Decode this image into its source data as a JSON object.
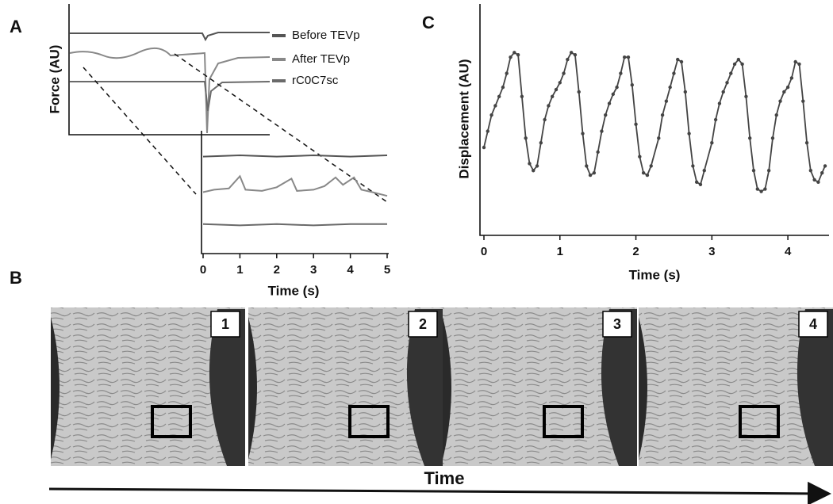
{
  "panel_labels": [
    "A",
    "B",
    "C"
  ],
  "chart_data": [
    {
      "type": "line",
      "ylabel": "Force (AU)",
      "xlabel": "Time (s)",
      "xlim": [
        0,
        5
      ],
      "xticks": [
        0,
        1,
        2,
        3,
        4,
        5
      ],
      "ylim": [
        0,
        100
      ],
      "series": [
        {
          "name": "Before TEVp",
          "color": "#555555",
          "x": [
            0,
            1,
            2,
            3,
            4,
            5
          ],
          "values": [
            79,
            80,
            79,
            80,
            79,
            80
          ]
        },
        {
          "name": "After TEVp",
          "color": "#888888",
          "x": [
            0,
            0.3,
            0.7,
            1.0,
            1.15,
            1.6,
            2.0,
            2.4,
            2.55,
            3.0,
            3.3,
            3.6,
            3.8,
            4.1,
            4.3,
            4.6,
            5
          ],
          "values": [
            50,
            52,
            53,
            63,
            52,
            51,
            54,
            61,
            51,
            52,
            55,
            62,
            56,
            62,
            52,
            50,
            47
          ]
        },
        {
          "name": "rC0C7sc",
          "color": "#6a6a6a",
          "x": [
            0,
            1,
            2,
            3,
            4,
            5
          ],
          "values": [
            24,
            23,
            24,
            23,
            24,
            24
          ]
        }
      ]
    },
    {
      "type": "line",
      "ylabel": "Displacement (AU)",
      "xlabel": "Time (s)",
      "xlim": [
        0,
        4.5
      ],
      "xticks": [
        0,
        1,
        2,
        3,
        4
      ],
      "ylim": [
        0,
        100
      ],
      "color": "#444444",
      "x": [
        0,
        0.05,
        0.1,
        0.15,
        0.2,
        0.25,
        0.3,
        0.35,
        0.4,
        0.45,
        0.5,
        0.55,
        0.6,
        0.65,
        0.7,
        0.75,
        0.8,
        0.85,
        0.9,
        0.95,
        1.0,
        1.05,
        1.1,
        1.15,
        1.2,
        1.25,
        1.3,
        1.35,
        1.4,
        1.45,
        1.5,
        1.55,
        1.6,
        1.65,
        1.7,
        1.75,
        1.8,
        1.85,
        1.9,
        1.95,
        2.0,
        2.05,
        2.1,
        2.15,
        2.2,
        2.3,
        2.35,
        2.4,
        2.45,
        2.5,
        2.55,
        2.6,
        2.65,
        2.7,
        2.75,
        2.8,
        2.85,
        2.9,
        3.0,
        3.05,
        3.1,
        3.15,
        3.2,
        3.25,
        3.3,
        3.35,
        3.4,
        3.45,
        3.5,
        3.55,
        3.6,
        3.65,
        3.7,
        3.75,
        3.8,
        3.85,
        3.9,
        3.95,
        4.0,
        4.05,
        4.1,
        4.15,
        4.2,
        4.25,
        4.3,
        4.35,
        4.4,
        4.45,
        4.49
      ],
      "values": [
        38,
        45,
        52,
        56,
        60,
        64,
        70,
        77,
        79,
        78,
        60,
        42,
        31,
        28,
        30,
        40,
        50,
        56,
        60,
        63,
        66,
        70,
        76,
        79,
        78,
        62,
        44,
        30,
        26,
        27,
        36,
        45,
        52,
        57,
        61,
        64,
        70,
        77,
        77,
        65,
        48,
        34,
        27,
        26,
        30,
        42,
        52,
        58,
        64,
        70,
        76,
        75,
        62,
        44,
        30,
        23,
        22,
        28,
        40,
        50,
        57,
        62,
        66,
        70,
        74,
        76,
        74,
        60,
        42,
        28,
        20,
        19,
        20,
        28,
        42,
        52,
        58,
        62,
        64,
        68,
        75,
        74,
        58,
        40,
        28,
        24,
        23,
        27,
        30
      ]
    }
  ],
  "frames": {
    "labels": [
      "1",
      "2",
      "3",
      "4"
    ],
    "axis_label": "Time"
  }
}
